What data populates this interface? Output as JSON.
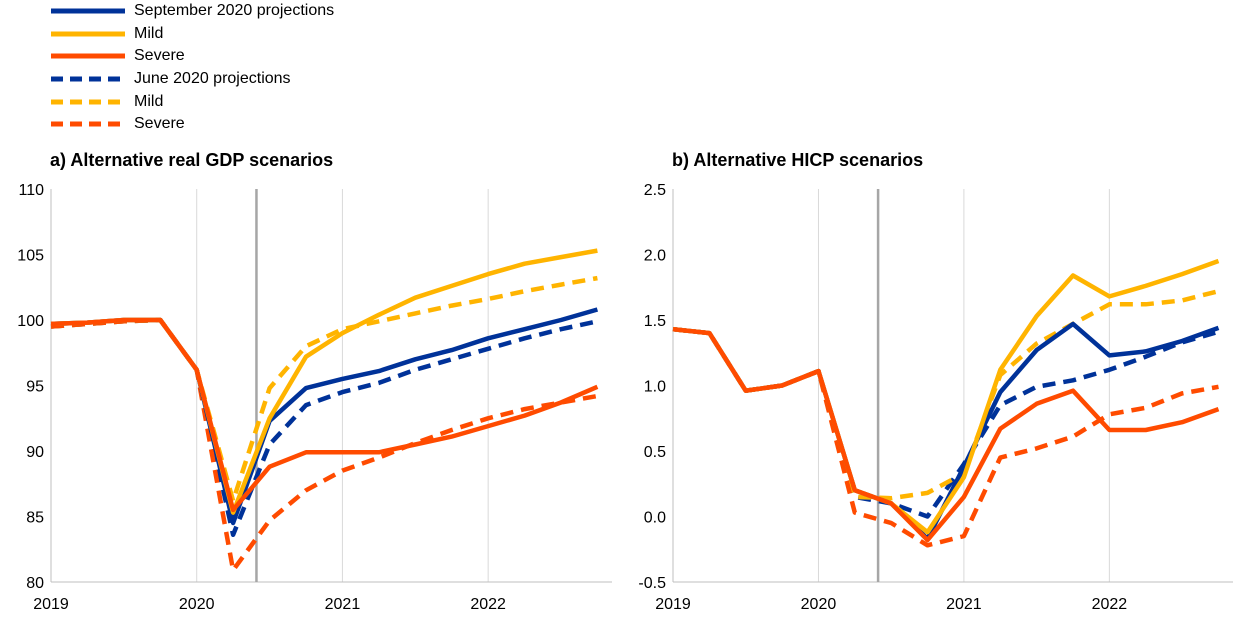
{
  "legend": [
    {
      "label": "September 2020 projections",
      "color": "#003299",
      "dash": false
    },
    {
      "label": "Mild",
      "color": "#FFB400",
      "dash": false
    },
    {
      "label": "Severe",
      "color": "#FF4B00",
      "dash": false
    },
    {
      "label": "June 2020 projections",
      "color": "#003299",
      "dash": true
    },
    {
      "label": "Mild",
      "color": "#FFB400",
      "dash": true
    },
    {
      "label": "Severe",
      "color": "#FF4B00",
      "dash": true
    }
  ],
  "chart_data": [
    {
      "type": "line",
      "title": "a) Alternative real GDP scenarios",
      "x": [
        2019.0,
        2019.25,
        2019.5,
        2019.75,
        2020.0,
        2020.25,
        2020.5,
        2020.75,
        2021.0,
        2021.25,
        2021.5,
        2021.75,
        2022.0,
        2022.25,
        2022.5,
        2022.75
      ],
      "xlim": [
        2019.0,
        2022.85
      ],
      "xticks": [
        "2019",
        "2020",
        "2021",
        "2022"
      ],
      "ylim": [
        80,
        110
      ],
      "yticks": [
        "80",
        "85",
        "90",
        "95",
        "100",
        "105",
        "110"
      ],
      "vline": 2020.41,
      "grid": "vertical",
      "series": [
        {
          "name": "June 2020 projections",
          "color": "#003299",
          "dash": true,
          "values": [
            99.5,
            99.7,
            99.9,
            100.0,
            96.2,
            83.6,
            90.5,
            93.5,
            94.5,
            95.2,
            96.2,
            97.0,
            97.8,
            98.6,
            99.3,
            99.9
          ]
        },
        {
          "name": "Mild",
          "color": "#FFB400",
          "dash": true,
          "values": [
            99.5,
            99.7,
            99.9,
            100.0,
            96.2,
            86.2,
            94.8,
            98.0,
            99.3,
            99.9,
            100.5,
            101.1,
            101.6,
            102.2,
            102.7,
            103.2
          ]
        },
        {
          "name": "Severe",
          "color": "#FF4B00",
          "dash": true,
          "values": [
            99.5,
            99.7,
            99.9,
            100.0,
            96.2,
            80.9,
            84.7,
            87.0,
            88.5,
            89.5,
            90.6,
            91.6,
            92.5,
            93.2,
            93.7,
            94.2
          ]
        },
        {
          "name": "September 2020 projections",
          "color": "#003299",
          "dash": false,
          "values": [
            99.7,
            99.8,
            100.0,
            100.0,
            96.2,
            84.5,
            92.3,
            94.8,
            95.5,
            96.1,
            97.0,
            97.7,
            98.6,
            99.3,
            100.0,
            100.8
          ]
        },
        {
          "name": "Mild",
          "color": "#FFB400",
          "dash": false,
          "values": [
            99.7,
            99.8,
            100.0,
            100.0,
            96.2,
            85.3,
            92.5,
            97.2,
            99.0,
            100.4,
            101.7,
            102.6,
            103.5,
            104.3,
            104.8,
            105.3
          ]
        },
        {
          "name": "Severe",
          "color": "#FF4B00",
          "dash": false,
          "values": [
            99.7,
            99.8,
            100.0,
            100.0,
            96.2,
            85.5,
            88.8,
            89.9,
            89.9,
            89.9,
            90.5,
            91.1,
            91.9,
            92.7,
            93.7,
            94.9
          ]
        }
      ]
    },
    {
      "type": "line",
      "title": "b) Alternative HICP scenarios",
      "x": [
        2019.0,
        2019.25,
        2019.5,
        2019.75,
        2020.0,
        2020.25,
        2020.5,
        2020.75,
        2021.0,
        2021.25,
        2021.5,
        2021.75,
        2022.0,
        2022.25,
        2022.5,
        2022.75
      ],
      "xlim": [
        2019.0,
        2022.85
      ],
      "xticks": [
        "2019",
        "2020",
        "2021",
        "2022"
      ],
      "ylim": [
        -0.5,
        2.5
      ],
      "yticks": [
        "-0.5",
        "0.0",
        "0.5",
        "1.0",
        "1.5",
        "2.0",
        "2.5"
      ],
      "vline": 2020.41,
      "grid": "vertical",
      "series": [
        {
          "name": "June 2020 projections",
          "color": "#003299",
          "dash": true,
          "values": [
            1.43,
            1.4,
            0.96,
            1.0,
            1.11,
            0.15,
            0.1,
            0.0,
            0.4,
            0.85,
            0.99,
            1.04,
            1.12,
            1.22,
            1.33,
            1.41
          ]
        },
        {
          "name": "Mild",
          "color": "#FFB400",
          "dash": true,
          "values": [
            1.43,
            1.4,
            0.96,
            1.0,
            1.11,
            0.15,
            0.14,
            0.18,
            0.33,
            1.08,
            1.32,
            1.47,
            1.62,
            1.62,
            1.65,
            1.72
          ]
        },
        {
          "name": "Severe",
          "color": "#FF4B00",
          "dash": true,
          "values": [
            1.43,
            1.4,
            0.96,
            1.0,
            1.11,
            0.03,
            -0.05,
            -0.22,
            -0.15,
            0.45,
            0.52,
            0.61,
            0.78,
            0.83,
            0.94,
            0.99
          ]
        },
        {
          "name": "September 2020 projections",
          "color": "#003299",
          "dash": false,
          "values": [
            1.43,
            1.4,
            0.96,
            1.0,
            1.11,
            0.2,
            0.1,
            -0.17,
            0.38,
            0.95,
            1.27,
            1.47,
            1.23,
            1.26,
            1.34,
            1.44
          ]
        },
        {
          "name": "Mild",
          "color": "#FFB400",
          "dash": false,
          "values": [
            1.43,
            1.4,
            0.96,
            1.0,
            1.11,
            0.2,
            0.1,
            -0.12,
            0.3,
            1.12,
            1.53,
            1.84,
            1.68,
            1.76,
            1.85,
            1.95
          ]
        },
        {
          "name": "Severe",
          "color": "#FF4B00",
          "dash": false,
          "values": [
            1.43,
            1.4,
            0.96,
            1.0,
            1.11,
            0.2,
            0.1,
            -0.18,
            0.15,
            0.67,
            0.86,
            0.96,
            0.66,
            0.66,
            0.72,
            0.82
          ]
        }
      ]
    }
  ]
}
